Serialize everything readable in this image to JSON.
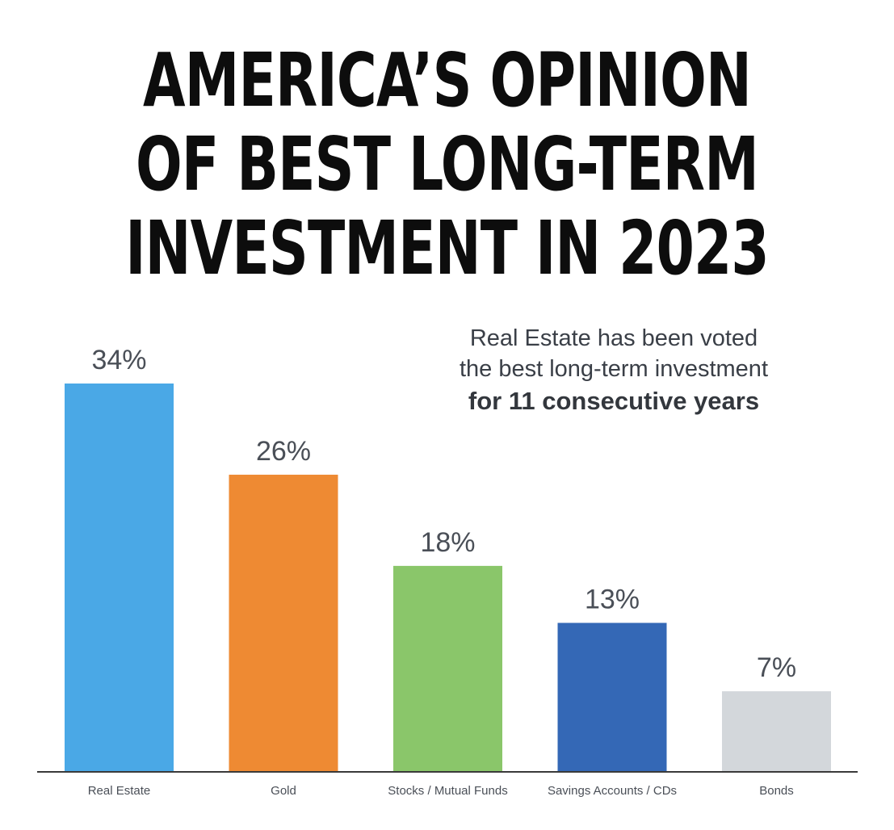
{
  "title_lines": [
    "AMERICA’S OPINION",
    "OF BEST LONG-TERM",
    "INVESTMENT IN 2023"
  ],
  "annotation": {
    "line1": "Real Estate has been voted",
    "line2": "the best long-term investment",
    "line3": "for 11 consecutive years"
  },
  "chart_data": {
    "type": "bar",
    "title": "AMERICA’S OPINION OF BEST LONG-TERM INVESTMENT IN 2023",
    "categories": [
      "Real Estate",
      "Gold",
      "Stocks / Mutual Funds",
      "Savings Accounts / CDs",
      "Bonds"
    ],
    "values": [
      34,
      26,
      18,
      13,
      7
    ],
    "value_labels": [
      "34%",
      "26%",
      "18%",
      "13%",
      "7%"
    ],
    "colors": [
      "#4aa8e6",
      "#ee8a33",
      "#8ac66a",
      "#3468b6",
      "#d3d7db"
    ],
    "ylim": [
      0,
      34
    ],
    "grid": false,
    "legend": "none"
  }
}
